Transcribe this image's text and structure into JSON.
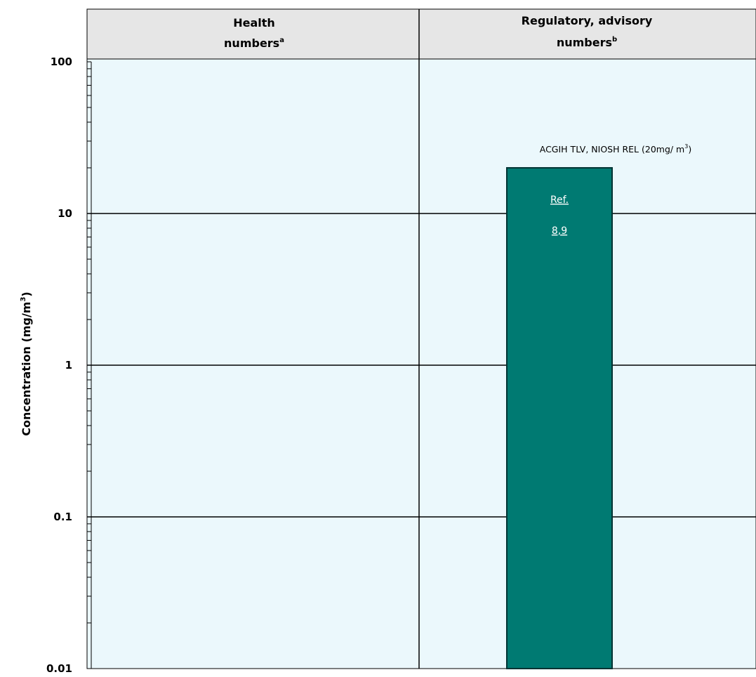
{
  "chart_data": {
    "type": "bar",
    "scale": "log",
    "ylim": [
      0.01,
      100
    ],
    "yticks": [
      "100",
      "10",
      "1",
      "0.1",
      "0.01"
    ],
    "ytick_values": [
      100,
      10,
      1,
      0.1,
      0.01
    ],
    "ylabel": "Concentration (mg/m",
    "ylabel_sup": "3",
    "ylabel_close": ")",
    "grid": true,
    "columns": [
      {
        "title_line1": "Health",
        "title_line2": "numbers",
        "sup": "a"
      },
      {
        "title_line1": "Regulatory, advisory",
        "title_line2": "numbers",
        "sup": "b"
      }
    ],
    "bars": [
      {
        "column": 1,
        "value": 20,
        "color": "#007a72",
        "label": "ACGIH TLV, NIOSH REL (20mg/ m",
        "label_sup": "3",
        "label_close": ")",
        "ref_line1": "Ref.",
        "ref_line2": "8,9"
      }
    ]
  },
  "colors": {
    "plot_bg": "#ebf8fc",
    "header_bg": "#e6e6e6",
    "grid": "#000000",
    "bar": "#007a72",
    "bar_border": "#003333"
  }
}
